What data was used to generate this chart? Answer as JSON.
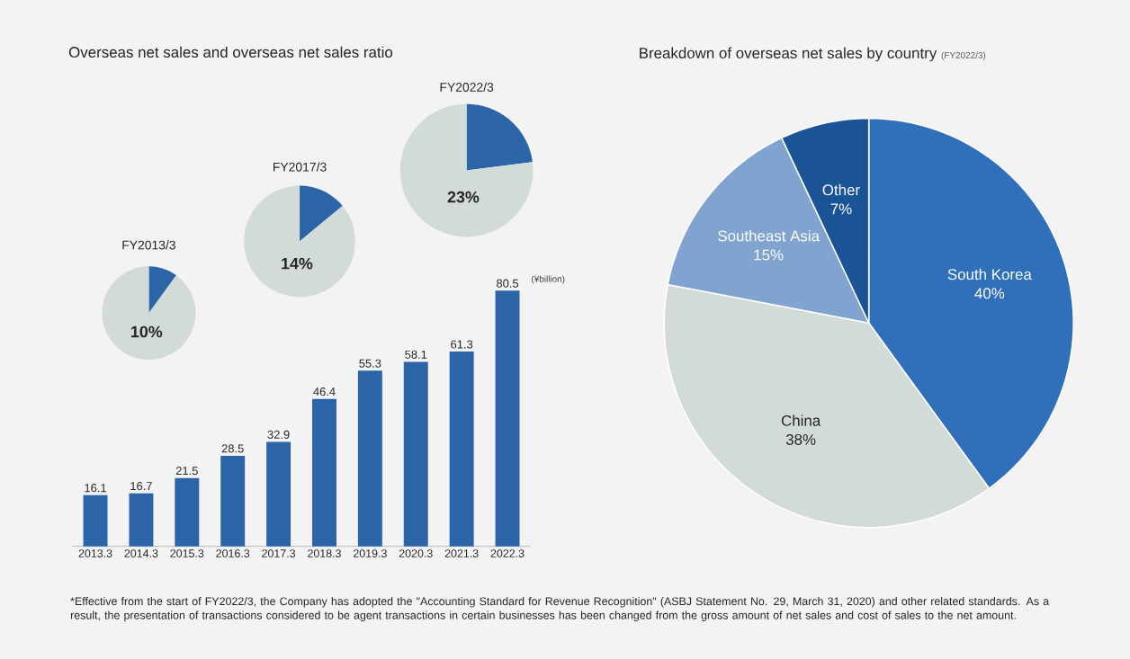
{
  "chart_data": [
    {
      "type": "bar",
      "title": "Overseas net sales and overseas net sales ratio",
      "categories": [
        "2013.3",
        "2014.3",
        "2015.3",
        "2016.3",
        "2017.3",
        "2018.3",
        "2019.3",
        "2020.3",
        "2021.3",
        "2022.3"
      ],
      "values": [
        16.1,
        16.7,
        21.5,
        28.5,
        32.9,
        46.4,
        55.3,
        58.1,
        61.3,
        80.5
      ],
      "color": "#2b65a8",
      "data_labels": true,
      "annotations": [
        "(¥billion)"
      ]
    },
    {
      "type": "pie",
      "title": "FY2013/3",
      "categories": [
        null,
        null
      ],
      "values": [
        10,
        90
      ],
      "colors": [
        "#2b65a8",
        "#d3dbd9"
      ],
      "annotations": [
        "10%"
      ]
    },
    {
      "type": "pie",
      "title": "FY2017/3",
      "categories": [
        null,
        null
      ],
      "values": [
        14,
        86
      ],
      "colors": [
        "#2b65a8",
        "#d3dbd9"
      ],
      "annotations": [
        "14%"
      ]
    },
    {
      "type": "pie",
      "title": "FY2022/3",
      "categories": [
        null,
        null
      ],
      "values": [
        23,
        77
      ],
      "colors": [
        "#2b65a8",
        "#d3dbd9"
      ],
      "annotations": [
        "23%"
      ]
    },
    {
      "type": "pie",
      "title": "Breakdown of overseas net sales by country",
      "subtitle": "(FY2022/3)",
      "categories": [
        "South Korea",
        "China",
        "Southeast Asia",
        "Other"
      ],
      "values": [
        40,
        38,
        15,
        7
      ],
      "colors": [
        "#3070bb",
        "#d3dbd9",
        "#80a3d0",
        "#1b5496"
      ],
      "value_labels": [
        "40%",
        "38%",
        "15%",
        "7%"
      ],
      "annotations": [
        "*Effective from the start of FY2022/3, the Company has adopted the \"Accounting Standard for Revenue Recognition\" (ASBJ Statement No. 29, March 31, 2020) and other related standards. As a result, the presentation of transactions considered to be agent transactions in certain businesses has been changed from the gross amount of net sales and cost of sales to the net amount."
      ]
    }
  ]
}
